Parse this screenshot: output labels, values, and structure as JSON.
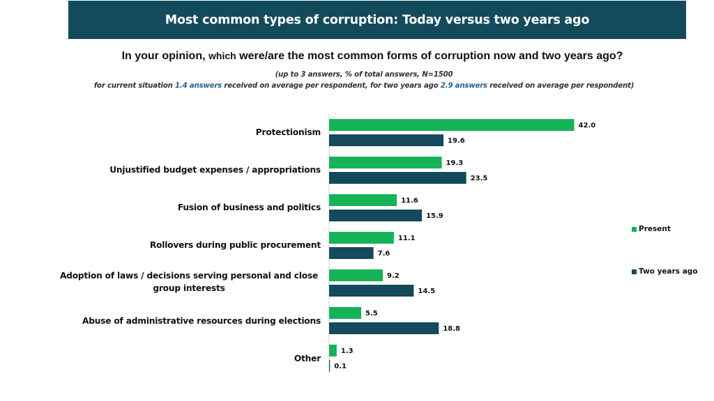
{
  "header": {
    "title": "Most common types of corruption: Today versus two years ago"
  },
  "question": {
    "part1": "In your opinion, ",
    "part2": "which",
    "part3": " were/are the most common forms of corruption now and two years ago?"
  },
  "notes": {
    "line1": "(up to 3 answers, % of total answers, N=1500",
    "line2_a": "for current situation ",
    "line2_b": "1.4 answers",
    "line2_c": " received on average per respondent, for two years ago ",
    "line2_d": "2.9 answers",
    "line2_e": " received on average per respondent)"
  },
  "colors": {
    "present": "#16b257",
    "two_years_ago": "#134a5c",
    "highlight": "#2c6288"
  },
  "chart_data": {
    "type": "bar",
    "orientation": "horizontal",
    "categories": [
      "Protectionism",
      "Unjustified budget expenses / appropriations",
      "Fusion of business and politics",
      "Rollovers during public procurement",
      "Adoption of laws / decisions serving personal and close group interests",
      "Abuse of administrative resources during elections",
      "Other"
    ],
    "series": [
      {
        "name": "Present",
        "values": [
          42.0,
          19.3,
          11.6,
          11.1,
          9.2,
          5.5,
          1.3
        ]
      },
      {
        "name": "Two years ago",
        "values": [
          19.6,
          23.5,
          15.9,
          7.6,
          14.5,
          18.8,
          0.1
        ]
      }
    ],
    "value_labels": {
      "Present": [
        "42.0",
        "19.3",
        "11.6",
        "11.1",
        "9.2",
        "5.5",
        "1.3"
      ],
      "Two years ago": [
        "19.6",
        "23.5",
        "15.9",
        "7.6",
        "14.5",
        "18.8",
        "0.1"
      ]
    },
    "xlim": [
      0,
      42
    ],
    "legend_position": "right",
    "grid": false
  }
}
